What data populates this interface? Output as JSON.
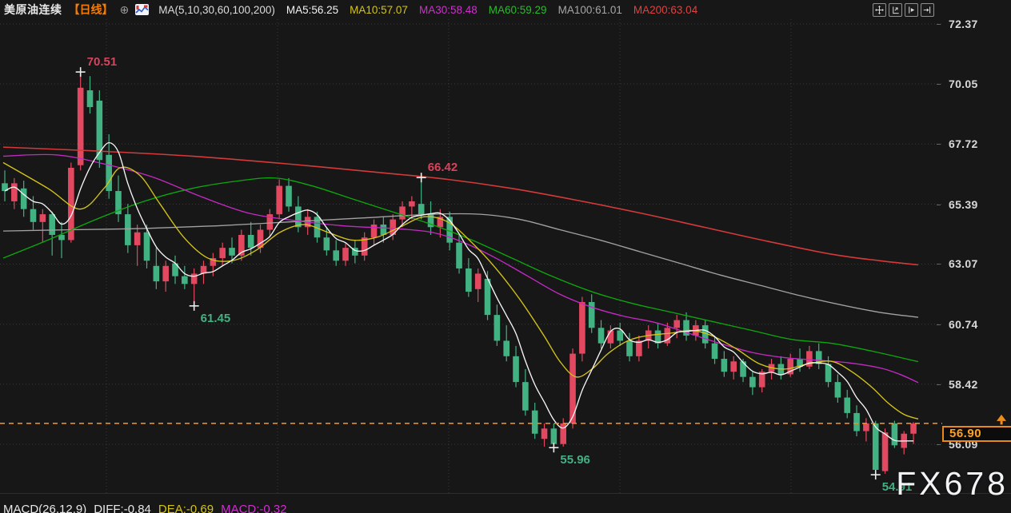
{
  "header": {
    "title": "美原油连续",
    "period_tag": "【日线】",
    "globe_glyph": "⊕",
    "ma_param_label": "MA(5,10,30,60,100,200)",
    "ma_values": [
      {
        "label": "MA5:56.25",
        "color": "#f2f2f2"
      },
      {
        "label": "MA10:57.07",
        "color": "#d4c41a"
      },
      {
        "label": "MA30:58.48",
        "color": "#cf2fcf"
      },
      {
        "label": "MA60:59.29",
        "color": "#2eb82e"
      },
      {
        "label": "MA100:61.01",
        "color": "#a6a6a6"
      },
      {
        "label": "MA200:63.04",
        "color": "#e04141"
      }
    ],
    "toolbar_icons": [
      {
        "name": "pan-icon"
      },
      {
        "name": "price-scale-left-icon"
      },
      {
        "name": "auto-scale-icon"
      },
      {
        "name": "jump-to-latest-icon"
      }
    ]
  },
  "watermark": "FX678",
  "footer": {
    "segments": [
      {
        "text": "MACD(26,12,9)",
        "color": "#e8e8e8"
      },
      {
        "text": "DIFF:-0.84",
        "color": "#e8e8e8"
      },
      {
        "text": "DEA:-0.69",
        "color": "#d4c41a"
      },
      {
        "text": "MACD:-0.32",
        "color": "#cf2fcf"
      }
    ]
  },
  "chart_data": {
    "type": "candlestick",
    "symbol": "美原油连续",
    "period": "日线",
    "y_ticks": [
      72.37,
      70.05,
      67.72,
      65.39,
      63.07,
      60.74,
      58.42,
      56.09
    ],
    "current_price": "56.90",
    "colors": {
      "up": "#e2485f",
      "down": "#42b283",
      "price_line": "#ef8d1b",
      "tag_text": "#ffa21e",
      "grid": "#3a3a3a",
      "annotation_high": "#d6445c",
      "annotation_low": "#43b183",
      "cross_marker": "#ededed"
    },
    "candles": [
      [
        66.2,
        66.7,
        65.5,
        65.9
      ],
      [
        65.5,
        66.4,
        65.2,
        66.2
      ],
      [
        66.0,
        66.3,
        64.9,
        65.2
      ],
      [
        65.2,
        65.7,
        64.4,
        64.7
      ],
      [
        64.7,
        65.2,
        63.9,
        65.0
      ],
      [
        65.0,
        65.1,
        63.4,
        64.2
      ],
      [
        64.2,
        64.7,
        63.3,
        64.0
      ],
      [
        64.0,
        67.0,
        63.9,
        66.8
      ],
      [
        66.9,
        70.51,
        66.7,
        69.9
      ],
      [
        69.8,
        70.35,
        68.9,
        69.15
      ],
      [
        69.4,
        69.8,
        66.8,
        67.1
      ],
      [
        67.3,
        68.1,
        65.6,
        65.9
      ],
      [
        65.9,
        66.5,
        64.7,
        65.0
      ],
      [
        65.0,
        65.4,
        63.5,
        63.8
      ],
      [
        63.8,
        64.6,
        63.0,
        64.3
      ],
      [
        64.3,
        64.6,
        62.9,
        63.2
      ],
      [
        63.0,
        63.7,
        62.1,
        62.4
      ],
      [
        62.4,
        63.2,
        62.0,
        63.0
      ],
      [
        63.1,
        63.4,
        62.3,
        62.6
      ],
      [
        62.6,
        63.0,
        62.1,
        62.3
      ],
      [
        62.3,
        62.9,
        61.45,
        62.7
      ],
      [
        62.7,
        63.2,
        62.3,
        63.0
      ],
      [
        63.0,
        63.5,
        62.6,
        63.3
      ],
      [
        63.3,
        63.9,
        63.0,
        63.7
      ],
      [
        63.7,
        64.1,
        63.1,
        63.4
      ],
      [
        63.4,
        64.4,
        63.2,
        64.2
      ],
      [
        64.2,
        64.7,
        63.4,
        63.7
      ],
      [
        63.7,
        64.6,
        63.5,
        64.4
      ],
      [
        64.4,
        65.2,
        64.1,
        65.0
      ],
      [
        65.0,
        66.35,
        64.8,
        66.1
      ],
      [
        66.1,
        66.4,
        65.1,
        65.3
      ],
      [
        65.3,
        65.7,
        64.3,
        64.5
      ],
      [
        64.5,
        65.2,
        64.2,
        64.9
      ],
      [
        64.9,
        65.1,
        63.9,
        64.1
      ],
      [
        64.1,
        64.5,
        63.4,
        63.6
      ],
      [
        63.6,
        64.0,
        63.0,
        63.2
      ],
      [
        63.2,
        63.9,
        63.0,
        63.7
      ],
      [
        63.7,
        64.0,
        63.1,
        63.4
      ],
      [
        63.4,
        64.3,
        63.2,
        64.1
      ],
      [
        64.1,
        64.8,
        63.8,
        64.6
      ],
      [
        64.6,
        64.9,
        63.9,
        64.2
      ],
      [
        64.2,
        65.0,
        64.0,
        64.8
      ],
      [
        64.8,
        65.5,
        64.5,
        65.3
      ],
      [
        65.3,
        65.7,
        64.8,
        65.5
      ],
      [
        65.4,
        66.42,
        64.8,
        65.0
      ],
      [
        65.0,
        65.5,
        64.2,
        64.5
      ],
      [
        64.5,
        65.2,
        64.1,
        64.9
      ],
      [
        64.9,
        65.1,
        63.6,
        63.9
      ],
      [
        63.9,
        64.2,
        62.7,
        62.9
      ],
      [
        62.9,
        63.3,
        61.8,
        62.0
      ],
      [
        62.1,
        62.9,
        61.6,
        62.7
      ],
      [
        62.5,
        62.8,
        60.9,
        61.1
      ],
      [
        61.1,
        61.5,
        59.9,
        60.1
      ],
      [
        60.1,
        60.7,
        59.3,
        59.5
      ],
      [
        59.5,
        59.9,
        58.3,
        58.5
      ],
      [
        58.5,
        59.0,
        57.2,
        57.4
      ],
      [
        57.4,
        57.7,
        56.3,
        56.5
      ],
      [
        56.3,
        56.9,
        56.0,
        56.7
      ],
      [
        56.7,
        56.9,
        55.96,
        56.1
      ],
      [
        56.1,
        57.1,
        56.0,
        56.9
      ],
      [
        56.9,
        59.8,
        56.7,
        59.6
      ],
      [
        59.6,
        61.8,
        59.3,
        61.6
      ],
      [
        61.6,
        61.9,
        60.4,
        60.6
      ],
      [
        60.6,
        60.9,
        59.8,
        60.0
      ],
      [
        60.0,
        60.7,
        59.8,
        60.5
      ],
      [
        60.5,
        60.8,
        59.9,
        60.1
      ],
      [
        60.1,
        60.4,
        59.3,
        59.5
      ],
      [
        59.5,
        60.3,
        59.3,
        60.1
      ],
      [
        60.1,
        60.7,
        59.8,
        60.5
      ],
      [
        60.5,
        60.8,
        59.8,
        60.0
      ],
      [
        60.0,
        60.8,
        59.9,
        60.6
      ],
      [
        60.6,
        61.1,
        60.2,
        60.9
      ],
      [
        60.9,
        61.2,
        60.1,
        60.3
      ],
      [
        60.3,
        60.9,
        60.1,
        60.7
      ],
      [
        60.7,
        60.9,
        59.8,
        60.0
      ],
      [
        60.0,
        60.3,
        59.2,
        59.4
      ],
      [
        59.4,
        59.7,
        58.7,
        58.9
      ],
      [
        58.9,
        59.5,
        58.6,
        59.3
      ],
      [
        59.3,
        59.4,
        58.5,
        58.7
      ],
      [
        58.7,
        58.9,
        58.0,
        58.3
      ],
      [
        58.3,
        59.0,
        58.1,
        58.9
      ],
      [
        58.9,
        59.4,
        58.6,
        59.2
      ],
      [
        59.2,
        59.5,
        58.6,
        58.8
      ],
      [
        58.8,
        59.6,
        58.7,
        59.4
      ],
      [
        59.4,
        59.8,
        58.9,
        59.1
      ],
      [
        59.1,
        59.9,
        59.0,
        59.7
      ],
      [
        59.7,
        60.0,
        59.0,
        59.2
      ],
      [
        59.2,
        59.5,
        58.3,
        58.5
      ],
      [
        58.5,
        58.8,
        57.7,
        57.9
      ],
      [
        57.9,
        58.2,
        57.1,
        57.3
      ],
      [
        57.3,
        57.6,
        56.4,
        56.6
      ],
      [
        56.6,
        57.1,
        56.2,
        56.9
      ],
      [
        56.9,
        57.0,
        54.91,
        55.1
      ],
      [
        55.05,
        56.7,
        54.95,
        56.55
      ],
      [
        56.9,
        57.0,
        55.95,
        56.05
      ],
      [
        55.95,
        56.6,
        55.7,
        56.5
      ],
      [
        56.5,
        56.95,
        56.1,
        56.9
      ]
    ],
    "ma_series": [
      {
        "name": "MA5",
        "color": "#f5f5f5",
        "window": 5
      },
      {
        "name": "MA10",
        "color": "#d4c41a",
        "points": [
          [
            4,
            67.0
          ],
          [
            60,
            66.0
          ],
          [
            100,
            65.2
          ],
          [
            130,
            66.0
          ],
          [
            150,
            66.8
          ],
          [
            175,
            66.5
          ],
          [
            200,
            65.4
          ],
          [
            230,
            64.1
          ],
          [
            260,
            63.3
          ],
          [
            290,
            63.2
          ],
          [
            320,
            63.6
          ],
          [
            350,
            64.3
          ],
          [
            380,
            64.6
          ],
          [
            410,
            64.3
          ],
          [
            440,
            64.0
          ],
          [
            470,
            64.1
          ],
          [
            500,
            64.5
          ],
          [
            530,
            64.9
          ],
          [
            560,
            64.7
          ],
          [
            590,
            63.9
          ],
          [
            620,
            62.9
          ],
          [
            650,
            61.7
          ],
          [
            680,
            60.3
          ],
          [
            700,
            59.3
          ],
          [
            720,
            58.7
          ],
          [
            740,
            59.0
          ],
          [
            760,
            59.6
          ],
          [
            785,
            60.1
          ],
          [
            810,
            60.3
          ],
          [
            840,
            60.4
          ],
          [
            865,
            60.5
          ],
          [
            890,
            60.3
          ],
          [
            920,
            59.8
          ],
          [
            950,
            59.2
          ],
          [
            980,
            59.0
          ],
          [
            1010,
            59.2
          ],
          [
            1040,
            59.3
          ],
          [
            1065,
            58.9
          ],
          [
            1090,
            58.3
          ],
          [
            1110,
            57.7
          ],
          [
            1130,
            57.25
          ],
          [
            1148,
            57.07
          ]
        ]
      },
      {
        "name": "MA30",
        "color": "#c32ac3",
        "points": [
          [
            4,
            67.25
          ],
          [
            70,
            67.3
          ],
          [
            130,
            66.95
          ],
          [
            190,
            66.45
          ],
          [
            250,
            65.7
          ],
          [
            310,
            65.05
          ],
          [
            370,
            64.75
          ],
          [
            430,
            64.55
          ],
          [
            490,
            64.45
          ],
          [
            540,
            64.3
          ],
          [
            580,
            63.9
          ],
          [
            620,
            63.3
          ],
          [
            660,
            62.6
          ],
          [
            700,
            61.9
          ],
          [
            740,
            61.4
          ],
          [
            780,
            61.05
          ],
          [
            820,
            60.8
          ],
          [
            860,
            60.4
          ],
          [
            900,
            60.0
          ],
          [
            940,
            59.65
          ],
          [
            980,
            59.45
          ],
          [
            1020,
            59.35
          ],
          [
            1060,
            59.25
          ],
          [
            1100,
            59.05
          ],
          [
            1125,
            58.8
          ],
          [
            1148,
            58.48
          ]
        ]
      },
      {
        "name": "MA60",
        "color": "#0da70d",
        "points": [
          [
            4,
            63.3
          ],
          [
            60,
            64.0
          ],
          [
            120,
            64.8
          ],
          [
            180,
            65.5
          ],
          [
            240,
            66.0
          ],
          [
            300,
            66.3
          ],
          [
            345,
            66.4
          ],
          [
            390,
            66.1
          ],
          [
            440,
            65.6
          ],
          [
            490,
            65.1
          ],
          [
            540,
            64.6
          ],
          [
            590,
            64.0
          ],
          [
            640,
            63.3
          ],
          [
            690,
            62.6
          ],
          [
            740,
            62.0
          ],
          [
            790,
            61.55
          ],
          [
            840,
            61.2
          ],
          [
            890,
            60.85
          ],
          [
            940,
            60.5
          ],
          [
            990,
            60.15
          ],
          [
            1040,
            60.0
          ],
          [
            1090,
            59.7
          ],
          [
            1148,
            59.29
          ]
        ]
      },
      {
        "name": "MA100",
        "color": "#a2a2a2",
        "points": [
          [
            4,
            64.35
          ],
          [
            90,
            64.4
          ],
          [
            180,
            64.45
          ],
          [
            270,
            64.55
          ],
          [
            360,
            64.7
          ],
          [
            450,
            64.85
          ],
          [
            540,
            65.0
          ],
          [
            600,
            65.0
          ],
          [
            650,
            64.8
          ],
          [
            700,
            64.4
          ],
          [
            750,
            64.0
          ],
          [
            800,
            63.55
          ],
          [
            850,
            63.1
          ],
          [
            900,
            62.65
          ],
          [
            950,
            62.25
          ],
          [
            1000,
            61.85
          ],
          [
            1050,
            61.5
          ],
          [
            1100,
            61.2
          ],
          [
            1148,
            61.01
          ]
        ]
      },
      {
        "name": "MA200",
        "color": "#d43a3a",
        "points": [
          [
            4,
            67.6
          ],
          [
            120,
            67.45
          ],
          [
            240,
            67.25
          ],
          [
            360,
            66.95
          ],
          [
            480,
            66.6
          ],
          [
            560,
            66.35
          ],
          [
            640,
            66.0
          ],
          [
            720,
            65.55
          ],
          [
            800,
            65.05
          ],
          [
            880,
            64.5
          ],
          [
            960,
            63.95
          ],
          [
            1040,
            63.45
          ],
          [
            1100,
            63.2
          ],
          [
            1148,
            63.04
          ]
        ]
      }
    ],
    "annotations": [
      {
        "text": "70.51",
        "candle": 8,
        "price": 70.51,
        "side": "high",
        "color": "#d6445c"
      },
      {
        "text": "66.42",
        "candle": 44,
        "price": 66.42,
        "side": "high",
        "color": "#d6445c"
      },
      {
        "text": "61.45",
        "candle": 20,
        "price": 61.45,
        "side": "low",
        "color": "#43b183"
      },
      {
        "text": "55.96",
        "candle": 58,
        "price": 55.96,
        "side": "low",
        "color": "#43b183"
      },
      {
        "text": "54.91",
        "candle": 92,
        "price": 54.91,
        "side": "low",
        "color": "#43b183"
      }
    ]
  }
}
